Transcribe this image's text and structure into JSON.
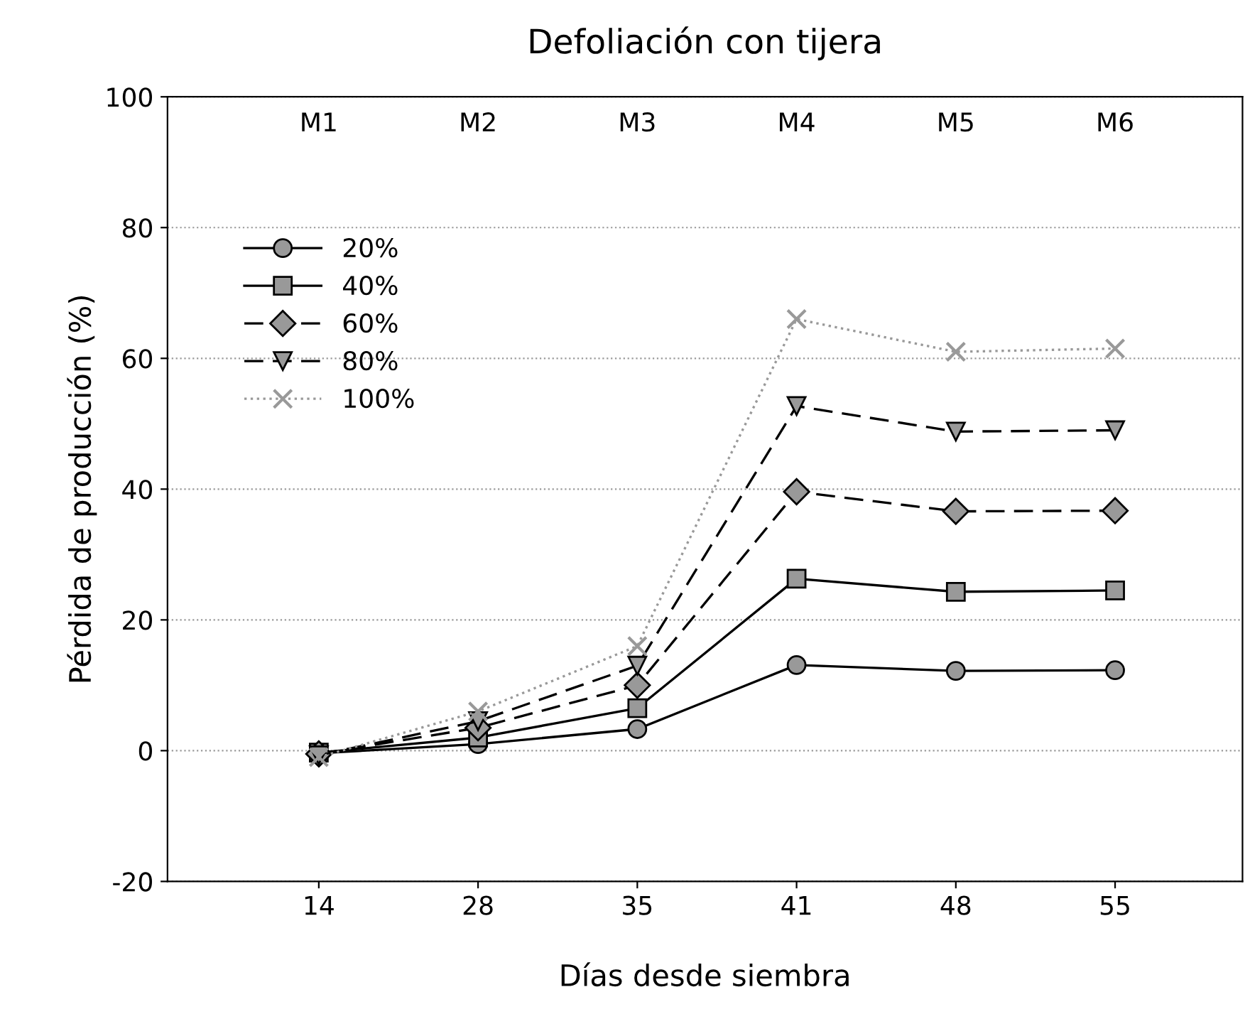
{
  "chart_data": {
    "type": "line",
    "title": "Defoliación con tijera",
    "xlabel": "Días desde siembra",
    "ylabel": "Pérdida de producción (%)",
    "categories": [
      "14",
      "28",
      "35",
      "41",
      "48",
      "55"
    ],
    "series": [
      {
        "name": "20%",
        "color": "#000000",
        "marker": "circle",
        "line_style": "solid",
        "values": [
          -0.4,
          1,
          3.3,
          13.1,
          12.2,
          12.3
        ]
      },
      {
        "name": "40%",
        "color": "#000000",
        "marker": "square",
        "line_style": "solid",
        "values": [
          -0.3,
          2,
          6.5,
          26.3,
          24.3,
          24.5
        ]
      },
      {
        "name": "60%",
        "color": "#000000",
        "marker": "diamond",
        "line_style": "dashed",
        "values": [
          -0.5,
          3.5,
          10,
          39.6,
          36.6,
          36.7
        ]
      },
      {
        "name": "80%",
        "color": "#000000",
        "marker": "triangle",
        "line_style": "dashed",
        "values": [
          -0.7,
          4.5,
          13,
          52.7,
          48.8,
          49
        ]
      },
      {
        "name": "100%",
        "color": "#999999",
        "marker": "cross",
        "line_style": "dotted",
        "values": [
          -1,
          6,
          16,
          66,
          61,
          61.5
        ]
      }
    ],
    "annotations": [
      "M1",
      "M2",
      "M3",
      "M4",
      "M5",
      "M6"
    ],
    "ylim": [
      -20,
      100
    ],
    "yticks": [
      -20,
      0,
      20,
      40,
      60,
      80,
      100
    ],
    "grid": "y",
    "legend": "top left"
  }
}
